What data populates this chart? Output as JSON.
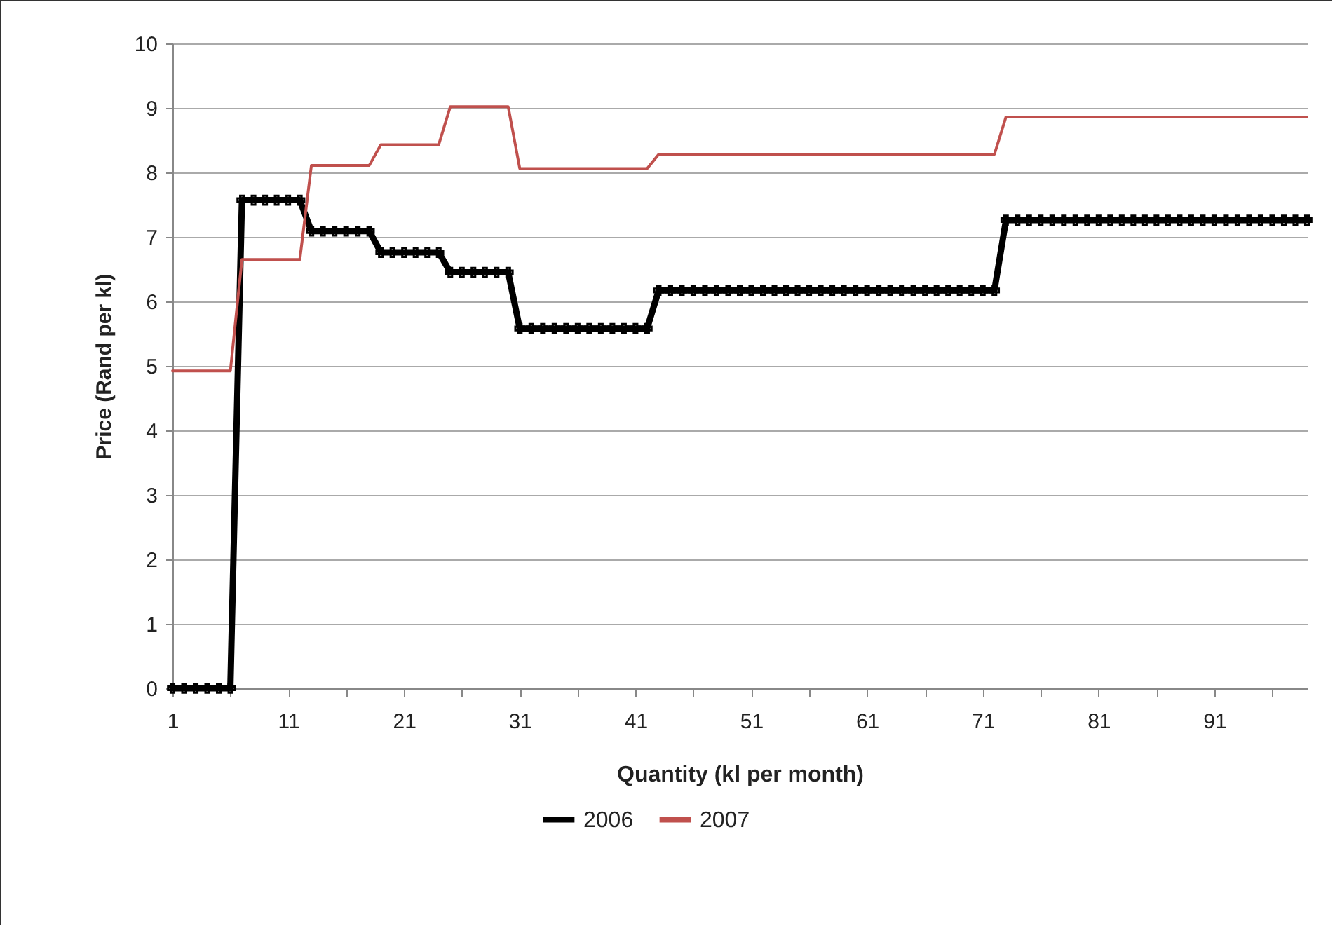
{
  "chart_data": {
    "type": "line",
    "xlabel": "Quantity (kl per month)",
    "ylabel": "Price (Rand per kl)",
    "categories": [
      "1",
      null,
      null,
      null,
      null,
      null,
      null,
      null,
      null,
      null,
      "11",
      null,
      null,
      null,
      null,
      null,
      null,
      null,
      null,
      null,
      "21",
      null,
      null,
      null,
      null,
      null,
      null,
      null,
      null,
      null,
      "31",
      null,
      null,
      null,
      null,
      null,
      null,
      null,
      null,
      null,
      "41",
      null,
      null,
      null,
      null,
      null,
      null,
      null,
      null,
      null,
      "51",
      null,
      null,
      null,
      null,
      null,
      null,
      null,
      null,
      null,
      "61",
      null,
      null,
      null,
      null,
      null,
      null,
      null,
      null,
      null,
      "71",
      null,
      null,
      null,
      null,
      null,
      null,
      null,
      null,
      null,
      "81",
      null,
      null,
      null,
      null,
      null,
      null,
      null,
      null,
      null,
      "91",
      null,
      null,
      null,
      null,
      null,
      null,
      null,
      null
    ],
    "series": [
      {
        "name": "2006",
        "color": "#000000",
        "marker": "cross",
        "values": [
          0,
          0,
          0,
          0,
          0,
          0,
          7.57,
          7.57,
          7.57,
          7.57,
          7.57,
          7.57,
          7.09,
          7.09,
          7.09,
          7.09,
          7.09,
          7.09,
          6.76,
          6.76,
          6.76,
          6.76,
          6.76,
          6.76,
          6.45,
          6.45,
          6.45,
          6.45,
          6.45,
          6.45,
          5.58,
          5.58,
          5.58,
          5.58,
          5.58,
          5.58,
          5.58,
          5.58,
          5.58,
          5.58,
          5.58,
          5.58,
          6.17,
          6.17,
          6.17,
          6.17,
          6.17,
          6.17,
          6.17,
          6.17,
          6.17,
          6.17,
          6.17,
          6.17,
          6.17,
          6.17,
          6.17,
          6.17,
          6.17,
          6.17,
          6.17,
          6.17,
          6.17,
          6.17,
          6.17,
          6.17,
          6.17,
          6.17,
          6.17,
          6.17,
          6.17,
          6.17,
          7.26,
          7.26,
          7.26,
          7.26,
          7.26,
          7.26,
          7.26,
          7.26,
          7.26,
          7.26,
          7.26,
          7.26,
          7.26,
          7.26,
          7.26,
          7.26,
          7.26,
          7.26,
          7.26,
          7.26,
          7.26,
          7.26,
          7.26,
          7.26,
          7.26,
          7.26,
          7.26
        ]
      },
      {
        "name": "2007",
        "color": "#c0504d",
        "values": [
          4.92,
          4.92,
          4.92,
          4.92,
          4.92,
          4.92,
          6.65,
          6.65,
          6.65,
          6.65,
          6.65,
          6.65,
          8.11,
          8.11,
          8.11,
          8.11,
          8.11,
          8.11,
          8.43,
          8.43,
          8.43,
          8.43,
          8.43,
          8.43,
          9.02,
          9.02,
          9.02,
          9.02,
          9.02,
          9.02,
          8.06,
          8.06,
          8.06,
          8.06,
          8.06,
          8.06,
          8.06,
          8.06,
          8.06,
          8.06,
          8.06,
          8.06,
          8.28,
          8.28,
          8.28,
          8.28,
          8.28,
          8.28,
          8.28,
          8.28,
          8.28,
          8.28,
          8.28,
          8.28,
          8.28,
          8.28,
          8.28,
          8.28,
          8.28,
          8.28,
          8.28,
          8.28,
          8.28,
          8.28,
          8.28,
          8.28,
          8.28,
          8.28,
          8.28,
          8.28,
          8.28,
          8.28,
          8.86,
          8.86,
          8.86,
          8.86,
          8.86,
          8.86,
          8.86,
          8.86,
          8.86,
          8.86,
          8.86,
          8.86,
          8.86,
          8.86,
          8.86,
          8.86,
          8.86,
          8.86,
          8.86,
          8.86,
          8.86,
          8.86,
          8.86,
          8.86,
          8.86,
          8.86,
          8.86
        ]
      }
    ],
    "ylim": [
      0,
      10
    ],
    "yticks": [
      0,
      1,
      2,
      3,
      4,
      5,
      6,
      7,
      8,
      9,
      10
    ],
    "grid": "y",
    "legend": "bottom"
  }
}
